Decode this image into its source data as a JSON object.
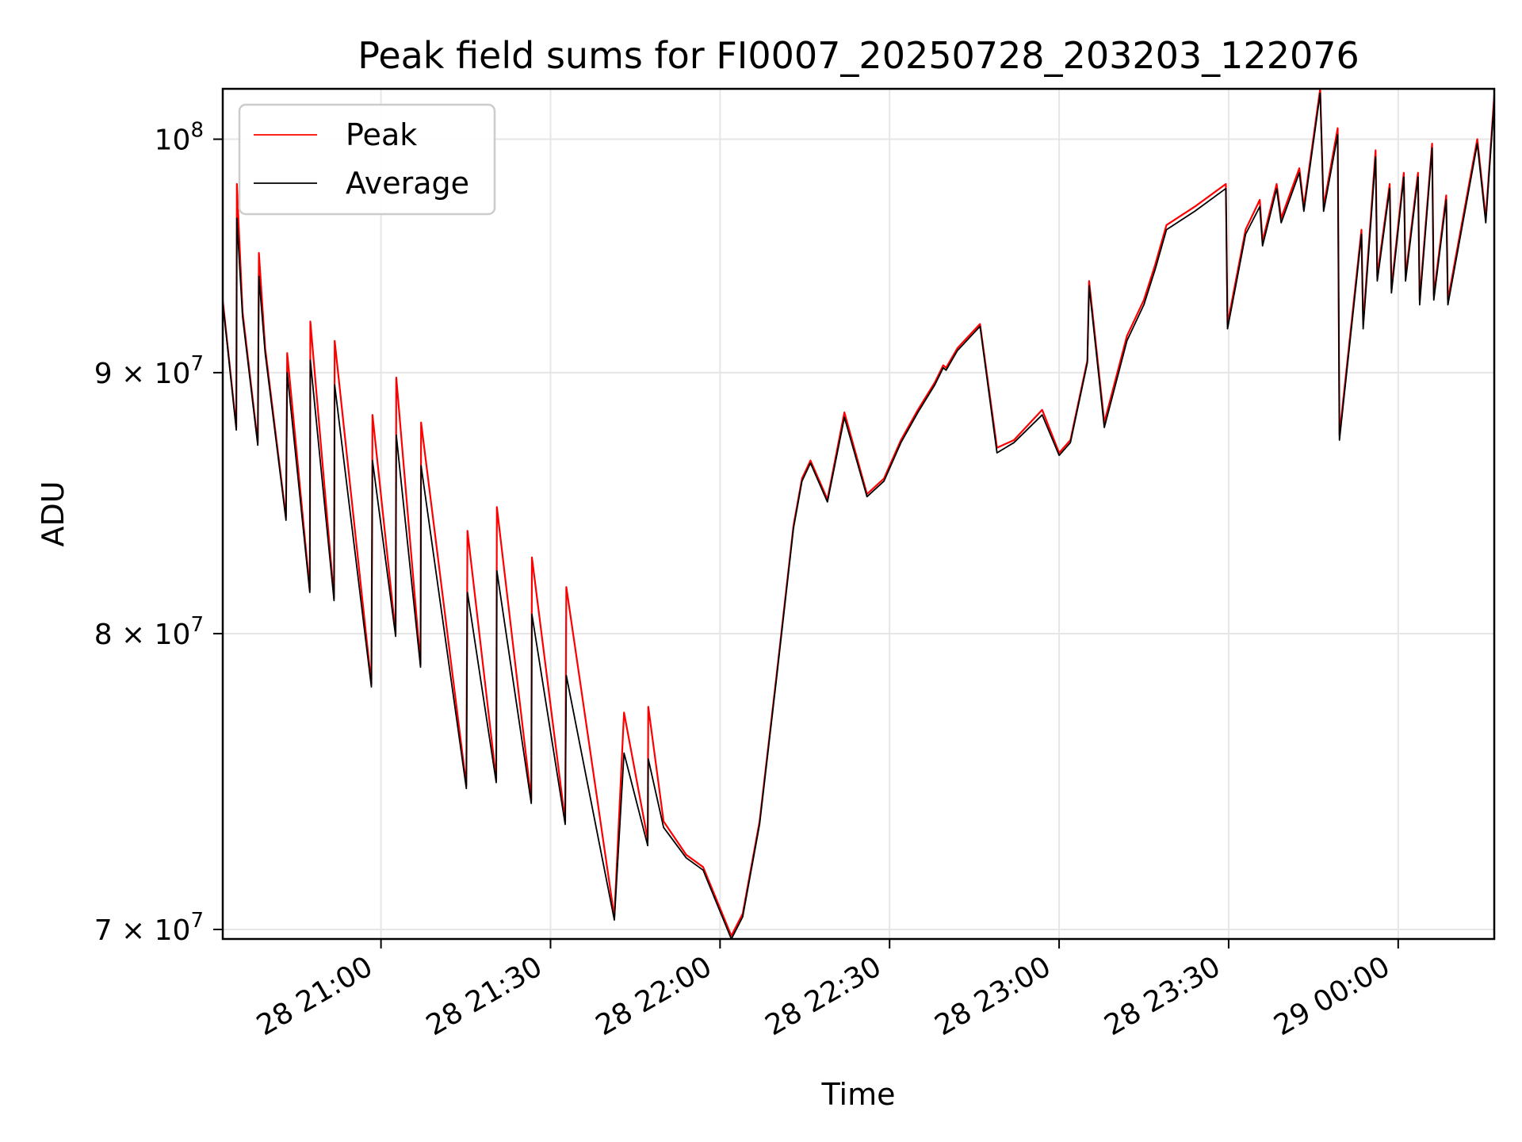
{
  "chart_data": {
    "type": "line",
    "title": "Peak field sums for FI0007_20250728_203203_122076",
    "xlabel": "Time",
    "ylabel": "ADU",
    "y_scale": "log",
    "x_unit": "minutes after 28 20:32:03",
    "xlim": [
      0,
      225
    ],
    "ylim": [
      69700000,
      102300000
    ],
    "grid": true,
    "legend_position": "top-left",
    "x_ticks": [
      {
        "x": 28,
        "label": "28 21:00"
      },
      {
        "x": 58,
        "label": "28 21:30"
      },
      {
        "x": 88,
        "label": "28 22:00"
      },
      {
        "x": 118,
        "label": "28 22:30"
      },
      {
        "x": 148,
        "label": "28 23:00"
      },
      {
        "x": 178,
        "label": "28 23:30"
      },
      {
        "x": 208,
        "label": "29 00:00"
      }
    ],
    "y_ticks": [
      {
        "y": 70000000,
        "mantissa": "7",
        "times": "×",
        "base": "10",
        "exp": "7"
      },
      {
        "y": 80000000,
        "mantissa": "8",
        "times": "×",
        "base": "10",
        "exp": "7"
      },
      {
        "y": 90000000,
        "mantissa": "9",
        "times": "×",
        "base": "10",
        "exp": "7"
      },
      {
        "y": 100000000,
        "mantissa": "",
        "times": "",
        "base": "10",
        "exp": "8"
      }
    ],
    "series": [
      {
        "name": "Peak",
        "color": "#ff0000",
        "x": [
          0,
          2.4,
          2.5,
          3.5,
          6.2,
          6.4,
          7.5,
          11.2,
          11.4,
          15.4,
          15.5,
          19.7,
          19.8,
          26.3,
          26.5,
          30.6,
          30.7,
          35.0,
          35.1,
          43.1,
          43.3,
          48.4,
          48.5,
          54.6,
          54.7,
          60.6,
          60.8,
          69.3,
          71.0,
          75.2,
          75.3,
          78.0,
          82.0,
          85.0,
          90.0,
          92.0,
          95.0,
          98.0,
          101.0,
          102.5,
          104.0,
          107.0,
          110.0,
          114.0,
          117.0,
          120.0,
          123.0,
          126.0,
          127.5,
          128.0,
          130.0,
          132.0,
          134.0,
          137.0,
          140.0,
          145.0,
          148.0,
          150.0,
          153.0,
          153.3,
          156.0,
          160.0,
          163.0,
          165.0,
          167.0,
          172.0,
          177.5,
          177.8,
          181.0,
          183.5,
          184.0,
          186.5,
          187.3,
          190.5,
          191.3,
          194.2,
          194.8,
          197.3,
          197.6,
          201.5,
          201.8,
          204.0,
          204.3,
          206.5,
          206.8,
          209.0,
          209.3,
          211.5,
          211.8,
          214.0,
          214.3,
          216.5,
          216.8,
          222.0,
          223.5,
          225.0
        ],
        "values": [
          93000000,
          87800000,
          98000000,
          92500000,
          87200000,
          95000000,
          91000000,
          84300000,
          90800000,
          81600000,
          92100000,
          81300000,
          91300000,
          78200000,
          88300000,
          80000000,
          89800000,
          78900000,
          88000000,
          74700000,
          83800000,
          74900000,
          84700000,
          74200000,
          82800000,
          73500000,
          81700000,
          70400000,
          77200000,
          72900000,
          77400000,
          73500000,
          72400000,
          72000000,
          69800000,
          70500000,
          73500000,
          78500000,
          84000000,
          85800000,
          86500000,
          85000000,
          88400000,
          85200000,
          85800000,
          87300000,
          88500000,
          89600000,
          90300000,
          90200000,
          91000000,
          91500000,
          92000000,
          87000000,
          87300000,
          88500000,
          86800000,
          87300000,
          90500000,
          93800000,
          88000000,
          91500000,
          93000000,
          94500000,
          96200000,
          97000000,
          98000000,
          92000000,
          96000000,
          97300000,
          95500000,
          98000000,
          96500000,
          98700000,
          97000000,
          102300000,
          97000000,
          100500000,
          87500000,
          96000000,
          92000000,
          99500000,
          94000000,
          98000000,
          93500000,
          98500000,
          94000000,
          98500000,
          93000000,
          99800000,
          93200000,
          97500000,
          93000000,
          100000000,
          96500000,
          102000000
        ]
      },
      {
        "name": "Average",
        "color": "#000000",
        "x": [
          0,
          2.4,
          2.5,
          3.5,
          6.2,
          6.4,
          7.5,
          11.2,
          11.4,
          15.4,
          15.5,
          19.7,
          19.8,
          26.3,
          26.5,
          30.6,
          30.7,
          35.0,
          35.1,
          43.1,
          43.3,
          48.4,
          48.5,
          54.6,
          54.7,
          60.6,
          60.8,
          69.3,
          71.0,
          75.2,
          75.3,
          78.0,
          82.0,
          85.0,
          90.0,
          92.0,
          95.0,
          98.0,
          101.0,
          102.5,
          104.0,
          107.0,
          110.0,
          114.0,
          117.0,
          120.0,
          123.0,
          126.0,
          127.5,
          128.0,
          130.0,
          132.0,
          134.0,
          137.0,
          140.0,
          145.0,
          148.0,
          150.0,
          153.0,
          153.3,
          156.0,
          160.0,
          163.0,
          165.0,
          167.0,
          172.0,
          177.5,
          177.8,
          181.0,
          183.5,
          184.0,
          186.5,
          187.3,
          190.5,
          191.3,
          194.2,
          194.8,
          197.3,
          197.6,
          201.5,
          201.8,
          204.0,
          204.3,
          206.5,
          206.8,
          209.0,
          209.3,
          211.5,
          211.8,
          214.0,
          214.3,
          216.5,
          216.8,
          222.0,
          223.5,
          225.0
        ],
        "values": [
          92900000,
          87700000,
          96500000,
          92300000,
          87100000,
          94000000,
          90800000,
          84200000,
          90000000,
          81500000,
          90500000,
          81200000,
          89500000,
          78100000,
          86500000,
          79900000,
          87500000,
          78800000,
          86300000,
          74600000,
          81500000,
          74800000,
          82300000,
          74100000,
          80700000,
          73400000,
          78500000,
          70300000,
          75800000,
          72700000,
          75600000,
          73300000,
          72300000,
          71900000,
          69700000,
          70400000,
          73400000,
          78400000,
          83900000,
          85700000,
          86400000,
          84900000,
          88200000,
          85100000,
          85700000,
          87200000,
          88400000,
          89500000,
          90200000,
          90100000,
          90900000,
          91400000,
          91900000,
          86800000,
          87200000,
          88300000,
          86700000,
          87200000,
          90400000,
          93600000,
          87800000,
          91300000,
          92800000,
          94300000,
          96000000,
          96800000,
          97800000,
          91800000,
          95800000,
          97000000,
          95300000,
          97800000,
          96300000,
          98500000,
          96800000,
          102100000,
          96800000,
          100200000,
          87300000,
          95800000,
          91800000,
          99200000,
          93800000,
          97800000,
          93300000,
          98300000,
          93800000,
          98300000,
          92800000,
          99600000,
          93000000,
          97300000,
          92800000,
          99800000,
          96300000,
          101800000
        ]
      }
    ]
  }
}
